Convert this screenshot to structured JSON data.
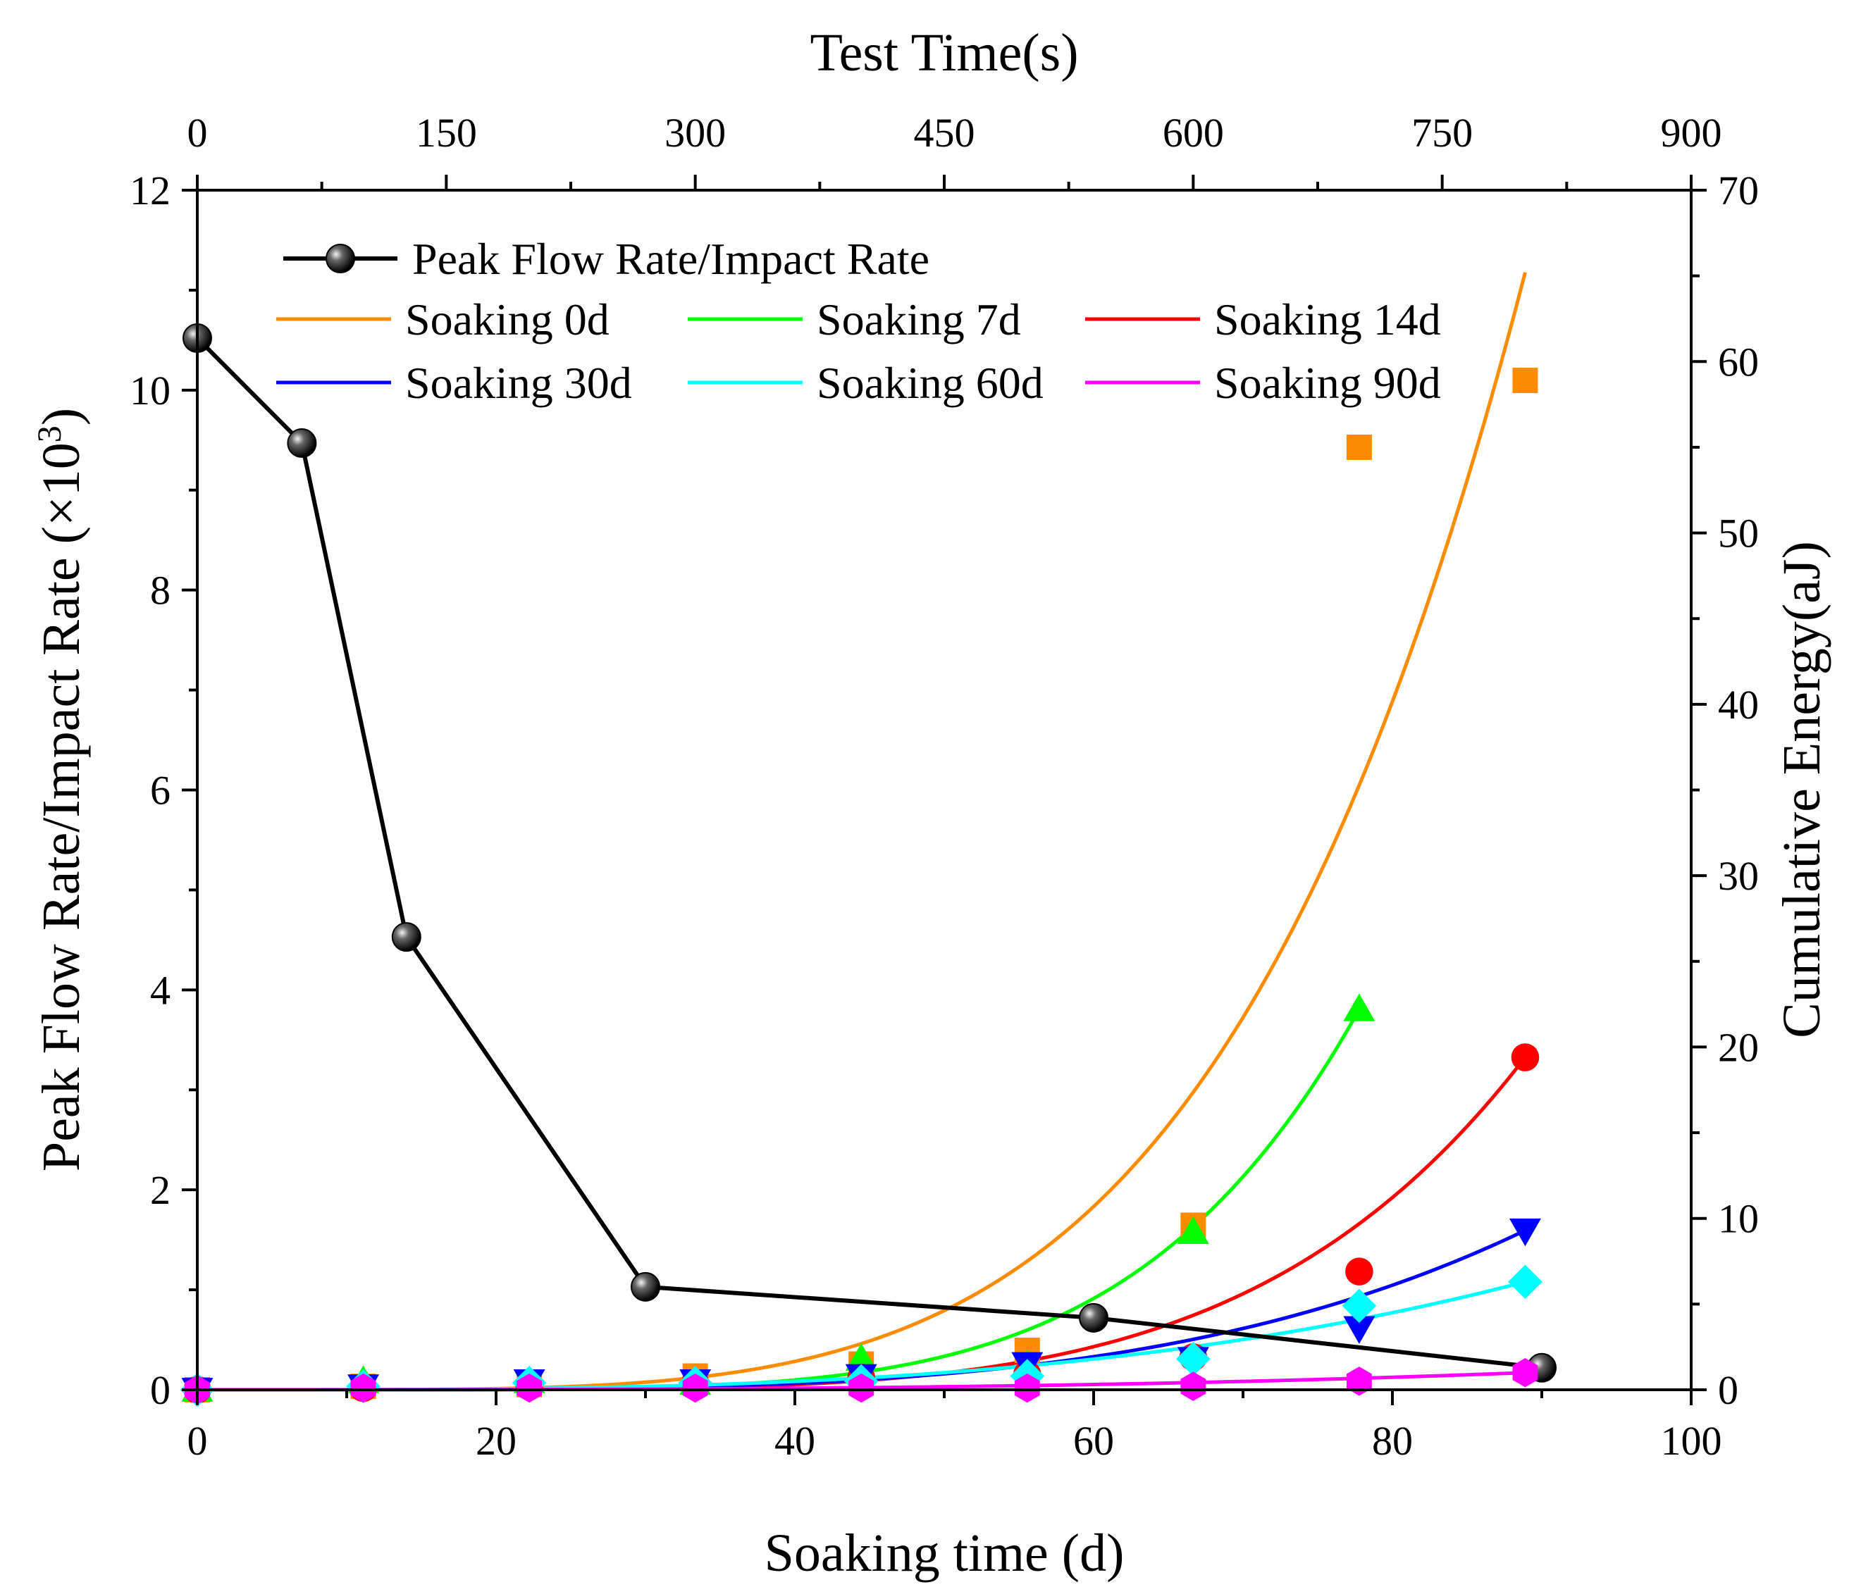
{
  "chart_data": {
    "type": "line",
    "xlabel": "Soaking time (d)",
    "x2label": "Test Time(s)",
    "ylabel": "Peak Flow Rate/Impact Rate (×10",
    "ylabel_sup": "3",
    "ylabel_close": ")",
    "y2label": "Cumulative Energy(aJ)",
    "xlim": [
      0,
      100
    ],
    "x2lim": [
      0,
      900
    ],
    "ylim": [
      0,
      12
    ],
    "y2lim": [
      0,
      70
    ],
    "x_ticks": [
      "0",
      "20",
      "40",
      "60",
      "80",
      "100"
    ],
    "x2_ticks": [
      "0",
      "150",
      "300",
      "450",
      "600",
      "750",
      "900"
    ],
    "y_ticks": [
      "0",
      "2",
      "4",
      "6",
      "8",
      "10",
      "12"
    ],
    "y2_ticks": [
      "0",
      "10",
      "20",
      "30",
      "40",
      "50",
      "60",
      "70"
    ],
    "grid": false,
    "legend_position": "top-left",
    "peak_series": {
      "name": "Peak Flow Rate/Impact Rate",
      "color": "#000000",
      "x": [
        0,
        7,
        14,
        30,
        60,
        90
      ],
      "y": [
        10.52,
        9.47,
        4.53,
        1.03,
        0.72,
        0.22
      ]
    },
    "energy_series": [
      {
        "name": "Soaking 0d",
        "color": "#FF8C00",
        "marker": "square",
        "test_time": [
          0,
          100,
          200,
          300,
          400,
          500,
          600,
          700,
          800
        ],
        "energy": [
          0,
          0.2,
          0.3,
          0.8,
          1.5,
          2.3,
          9.6,
          55.0,
          58.9
        ],
        "fit_a": 65.2,
        "fit_n": 4.6,
        "fit_end": 800
      },
      {
        "name": "Soaking 7d",
        "color": "#00FF00",
        "marker": "triangle-up",
        "test_time": [
          0,
          100,
          200,
          300,
          400,
          500,
          600,
          700
        ],
        "energy": [
          0,
          0.5,
          0.5,
          0.4,
          1.8,
          1.4,
          9.2,
          22.2
        ],
        "fit_a": 22.2,
        "fit_n": 5.5,
        "fit_end": 700
      },
      {
        "name": "Soaking 14d",
        "color": "#FF0000",
        "marker": "circle",
        "test_time": [
          0,
          100,
          200,
          300,
          400,
          500,
          600,
          700,
          800
        ],
        "energy": [
          0,
          0.1,
          0.2,
          0.4,
          0.7,
          0.9,
          1.9,
          6.9,
          19.4
        ],
        "fit_a": 19.4,
        "fit_n": 5.2,
        "fit_end": 800
      },
      {
        "name": "Soaking 30d",
        "color": "#0000FF",
        "marker": "triangle-down",
        "test_time": [
          0,
          100,
          200,
          300,
          400,
          500,
          600,
          700,
          800
        ],
        "energy": [
          0,
          0.2,
          0.5,
          0.5,
          0.8,
          1.5,
          1.8,
          3.6,
          9.3
        ],
        "fit_a": 9.3,
        "fit_n": 4.0,
        "fit_end": 800
      },
      {
        "name": "Soaking 60d",
        "color": "#00FFFF",
        "marker": "diamond",
        "test_time": [
          0,
          100,
          200,
          300,
          400,
          500,
          600,
          700,
          800
        ],
        "energy": [
          0,
          0.2,
          0.4,
          0.4,
          0.5,
          0.8,
          1.8,
          4.9,
          6.3
        ],
        "fit_a": 6.3,
        "fit_n": 3.2,
        "fit_end": 800
      },
      {
        "name": "Soaking 90d",
        "color": "#FF00FF",
        "marker": "hexagon",
        "test_time": [
          0,
          100,
          200,
          300,
          400,
          500,
          600,
          700,
          800
        ],
        "energy": [
          0,
          0.1,
          0.1,
          0.1,
          0.1,
          0.1,
          0.2,
          0.5,
          1.0
        ],
        "fit_a": 1.0,
        "fit_n": 3.0,
        "fit_end": 800
      }
    ]
  }
}
